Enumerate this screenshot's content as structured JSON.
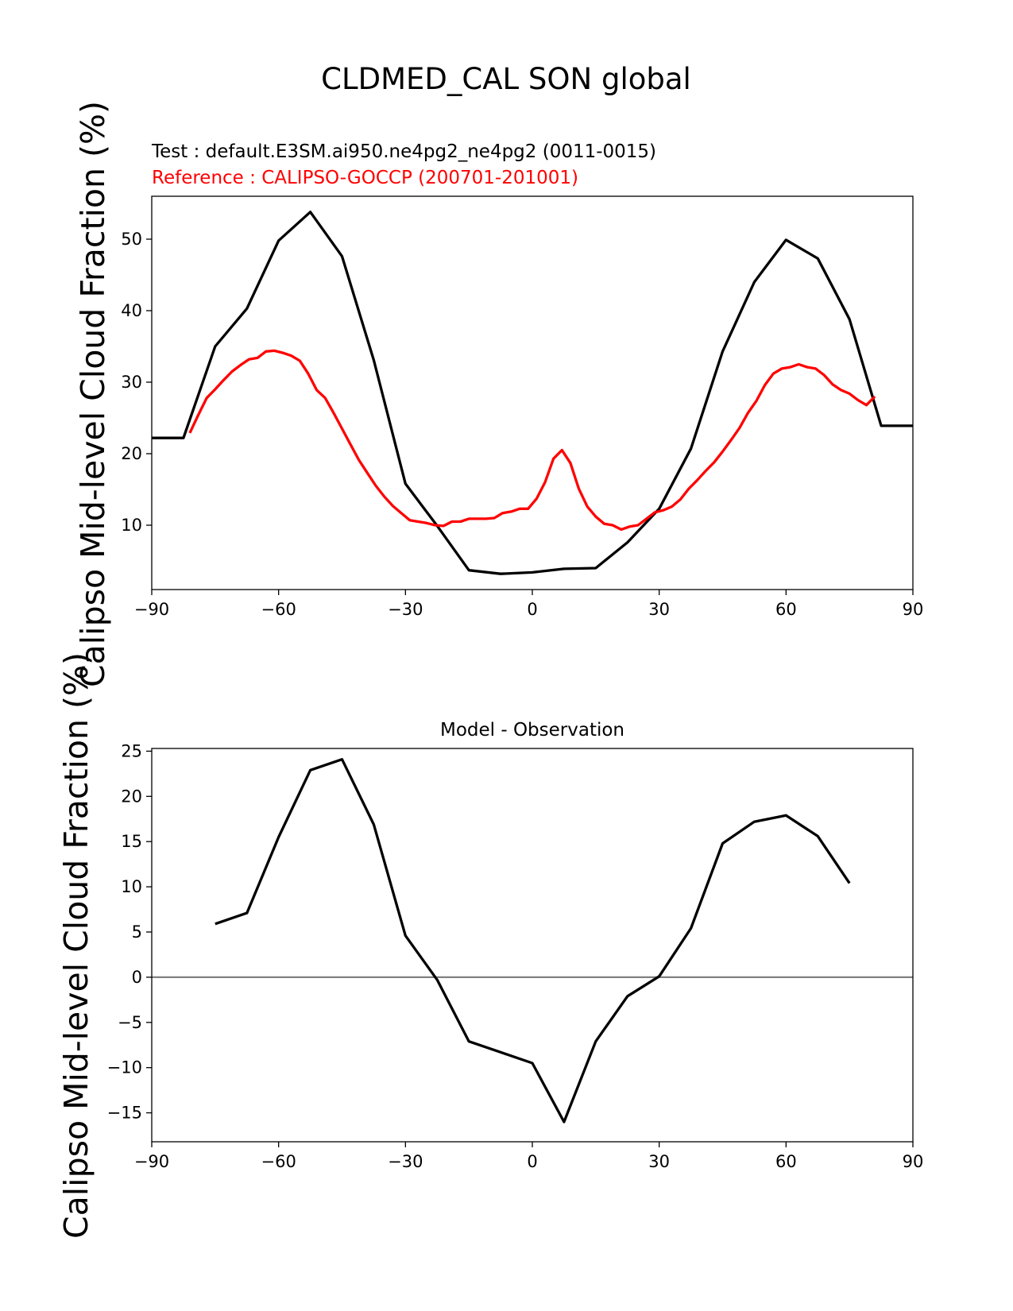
{
  "figure": {
    "title": "CLDMED_CAL SON global"
  },
  "chart_data": [
    {
      "type": "line",
      "title_test": "Test : default.E3SM.ai950.ne4pg2_ne4pg2 (0011-0015)",
      "title_reference": "Reference : CALIPSO-GOCCP (200701-201001)",
      "xlabel": "",
      "ylabel": "Calipso Mid-level Cloud Fraction (%)",
      "xlim": [
        -90,
        90
      ],
      "ylim": [
        1,
        56
      ],
      "xticks": [
        -90,
        -60,
        -30,
        0,
        30,
        60,
        90
      ],
      "yticks": [
        10,
        20,
        30,
        40,
        50
      ],
      "grid": false,
      "series": [
        {
          "color": "#000000",
          "x": [
            -90,
            -82.5,
            -75,
            -67.5,
            -60,
            -52.5,
            -45,
            -37.5,
            -30,
            -22.5,
            -15,
            -7.5,
            0,
            7.5,
            15,
            22.5,
            30,
            37.5,
            45,
            52.5,
            60,
            67.5,
            75,
            82.5,
            90
          ],
          "y": [
            22.2,
            22.2,
            35.0,
            40.3,
            49.8,
            53.8,
            47.6,
            33.1,
            15.8,
            9.9,
            3.7,
            3.2,
            3.4,
            3.9,
            4.0,
            7.6,
            12.3,
            20.7,
            34.3,
            44.0,
            49.9,
            47.3,
            38.8,
            23.9,
            23.9
          ]
        },
        {
          "color": "#ff0000",
          "x": [
            -81,
            -79,
            -77,
            -75,
            -73,
            -71,
            -69,
            -67,
            -65,
            -63,
            -61,
            -59,
            -57,
            -55,
            -53,
            -51,
            -49,
            -47,
            -45,
            -43,
            -41,
            -39,
            -37,
            -35,
            -33,
            -31,
            -29,
            -27,
            -25,
            -23,
            -21,
            -19,
            -17,
            -15,
            -13,
            -11,
            -9,
            -7,
            -5,
            -3,
            -1,
            1,
            3,
            5,
            7,
            9,
            11,
            13,
            15,
            17,
            19,
            21,
            23,
            25,
            27,
            29,
            31,
            33,
            35,
            37,
            39,
            41,
            43,
            45,
            47,
            49,
            51,
            53,
            55,
            57,
            59,
            61,
            63,
            65,
            67,
            69,
            71,
            73,
            75,
            77,
            79,
            81
          ],
          "y": [
            22.9,
            25.4,
            27.8,
            29.0,
            30.3,
            31.5,
            32.4,
            33.2,
            33.4,
            34.3,
            34.4,
            34.1,
            33.7,
            33.0,
            31.2,
            28.9,
            27.8,
            25.7,
            23.5,
            21.3,
            19.1,
            17.3,
            15.5,
            14.0,
            12.7,
            11.7,
            10.7,
            10.5,
            10.3,
            10.0,
            9.9,
            10.5,
            10.5,
            10.9,
            10.9,
            10.9,
            11.0,
            11.7,
            11.9,
            12.3,
            12.3,
            13.7,
            16.0,
            19.3,
            20.5,
            18.7,
            15.1,
            12.6,
            11.2,
            10.2,
            10.0,
            9.4,
            9.8,
            10.0,
            10.9,
            11.8,
            12.1,
            12.6,
            13.6,
            15.1,
            16.3,
            17.6,
            18.8,
            20.3,
            21.9,
            23.6,
            25.7,
            27.4,
            29.6,
            31.2,
            31.9,
            32.1,
            32.5,
            32.1,
            31.9,
            31.0,
            29.7,
            28.9,
            28.4,
            27.5,
            26.8,
            28.0
          ]
        }
      ]
    },
    {
      "type": "line",
      "title": "Model - Observation",
      "xlabel": "",
      "ylabel": "Calipso Mid-level Cloud Fraction (%)",
      "xlim": [
        -90,
        90
      ],
      "ylim": [
        -18.2,
        25.3
      ],
      "xticks": [
        -90,
        -60,
        -30,
        0,
        30,
        60,
        90
      ],
      "yticks": [
        -15,
        -10,
        -5,
        0,
        5,
        10,
        15,
        20,
        25
      ],
      "zero_line_color": "#808080",
      "grid": false,
      "series": [
        {
          "color": "#000000",
          "x": [
            -75,
            -67.5,
            -60,
            -52.5,
            -45,
            -37.5,
            -30,
            -22.5,
            -15,
            -7.5,
            0,
            7.5,
            15,
            22.5,
            30,
            37.5,
            45,
            52.5,
            60,
            67.5,
            75
          ],
          "y": [
            5.9,
            7.1,
            15.5,
            22.9,
            24.1,
            16.9,
            4.6,
            -0.3,
            -7.1,
            -8.3,
            -9.5,
            -16.0,
            -7.1,
            -2.1,
            0.1,
            5.4,
            14.8,
            17.2,
            17.9,
            15.6,
            10.4
          ]
        }
      ]
    }
  ]
}
